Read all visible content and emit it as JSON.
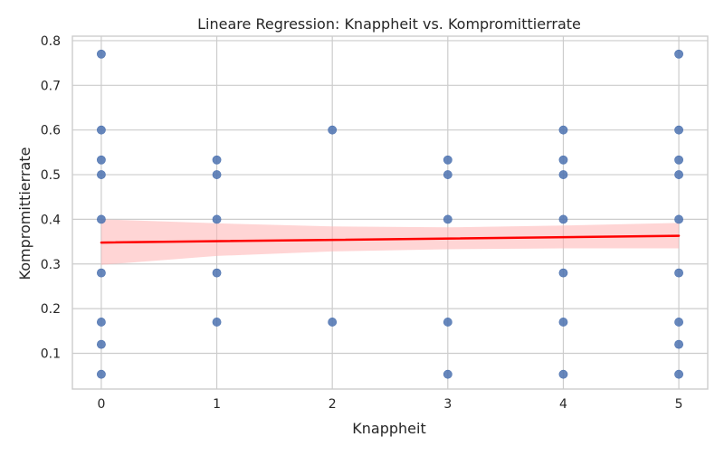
{
  "chart_data": {
    "type": "scatter",
    "title": "Lineare Regression: Knappheit vs. Kompromittierrate",
    "xlabel": "Knappheit",
    "ylabel": "Kompromittierrate",
    "xlim": [
      -0.25,
      5.25
    ],
    "ylim": [
      0.02,
      0.81
    ],
    "x_ticks": [
      0,
      1,
      2,
      3,
      4,
      5
    ],
    "y_ticks": [
      0.1,
      0.2,
      0.3,
      0.4,
      0.5,
      0.6,
      0.7,
      0.8
    ],
    "grid": true,
    "colors": {
      "points": "#4c72b0",
      "regression_line": "#ff0000",
      "confidence_band": "#ffb3b3",
      "grid": "#cccccc",
      "background": "#ffffff"
    },
    "points": [
      {
        "x": 0,
        "y": 0.77
      },
      {
        "x": 0,
        "y": 0.6
      },
      {
        "x": 0,
        "y": 0.533
      },
      {
        "x": 0,
        "y": 0.5
      },
      {
        "x": 0,
        "y": 0.4
      },
      {
        "x": 0,
        "y": 0.28
      },
      {
        "x": 0,
        "y": 0.17
      },
      {
        "x": 0,
        "y": 0.12
      },
      {
        "x": 0,
        "y": 0.053
      },
      {
        "x": 1,
        "y": 0.533
      },
      {
        "x": 1,
        "y": 0.5
      },
      {
        "x": 1,
        "y": 0.4
      },
      {
        "x": 1,
        "y": 0.28
      },
      {
        "x": 1,
        "y": 0.17
      },
      {
        "x": 2,
        "y": 0.6
      },
      {
        "x": 2,
        "y": 0.17
      },
      {
        "x": 3,
        "y": 0.533
      },
      {
        "x": 3,
        "y": 0.5
      },
      {
        "x": 3,
        "y": 0.4
      },
      {
        "x": 3,
        "y": 0.17
      },
      {
        "x": 3,
        "y": 0.053
      },
      {
        "x": 4,
        "y": 0.6
      },
      {
        "x": 4,
        "y": 0.533
      },
      {
        "x": 4,
        "y": 0.5
      },
      {
        "x": 4,
        "y": 0.4
      },
      {
        "x": 4,
        "y": 0.28
      },
      {
        "x": 4,
        "y": 0.17
      },
      {
        "x": 4,
        "y": 0.053
      },
      {
        "x": 5,
        "y": 0.77
      },
      {
        "x": 5,
        "y": 0.6
      },
      {
        "x": 5,
        "y": 0.533
      },
      {
        "x": 5,
        "y": 0.5
      },
      {
        "x": 5,
        "y": 0.4
      },
      {
        "x": 5,
        "y": 0.28
      },
      {
        "x": 5,
        "y": 0.17
      },
      {
        "x": 5,
        "y": 0.12
      },
      {
        "x": 5,
        "y": 0.053
      }
    ],
    "regression": {
      "x": [
        0,
        5
      ],
      "y": [
        0.348,
        0.363
      ]
    },
    "confidence_band": [
      {
        "x": 0,
        "lower": 0.298,
        "upper": 0.4
      },
      {
        "x": 1,
        "lower": 0.318,
        "upper": 0.391
      },
      {
        "x": 2,
        "lower": 0.328,
        "upper": 0.384
      },
      {
        "x": 3,
        "lower": 0.333,
        "upper": 0.382
      },
      {
        "x": 4,
        "lower": 0.335,
        "upper": 0.386
      },
      {
        "x": 5,
        "lower": 0.335,
        "upper": 0.392
      }
    ]
  }
}
